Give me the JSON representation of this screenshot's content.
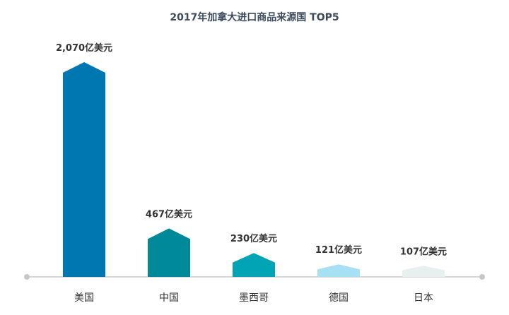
{
  "chart_data": {
    "type": "bar",
    "title": "2017年加拿大进口商品来源国 TOP5",
    "categories": [
      "美国",
      "中国",
      "墨西哥",
      "德国",
      "日本"
    ],
    "values": [
      2070,
      467,
      230,
      121,
      107
    ],
    "value_labels": [
      "2,070亿美元",
      "467亿美元",
      "230亿美元",
      "121亿美元",
      "107亿美元"
    ],
    "unit": "亿美元",
    "colors": [
      "#0077b0",
      "#008999",
      "#00a4b4",
      "#a6e0f5",
      "#e8f0ef"
    ],
    "axis_color": "#c8c8c8",
    "xlabel": "",
    "ylabel": "",
    "ylim": [
      0,
      2070
    ]
  }
}
